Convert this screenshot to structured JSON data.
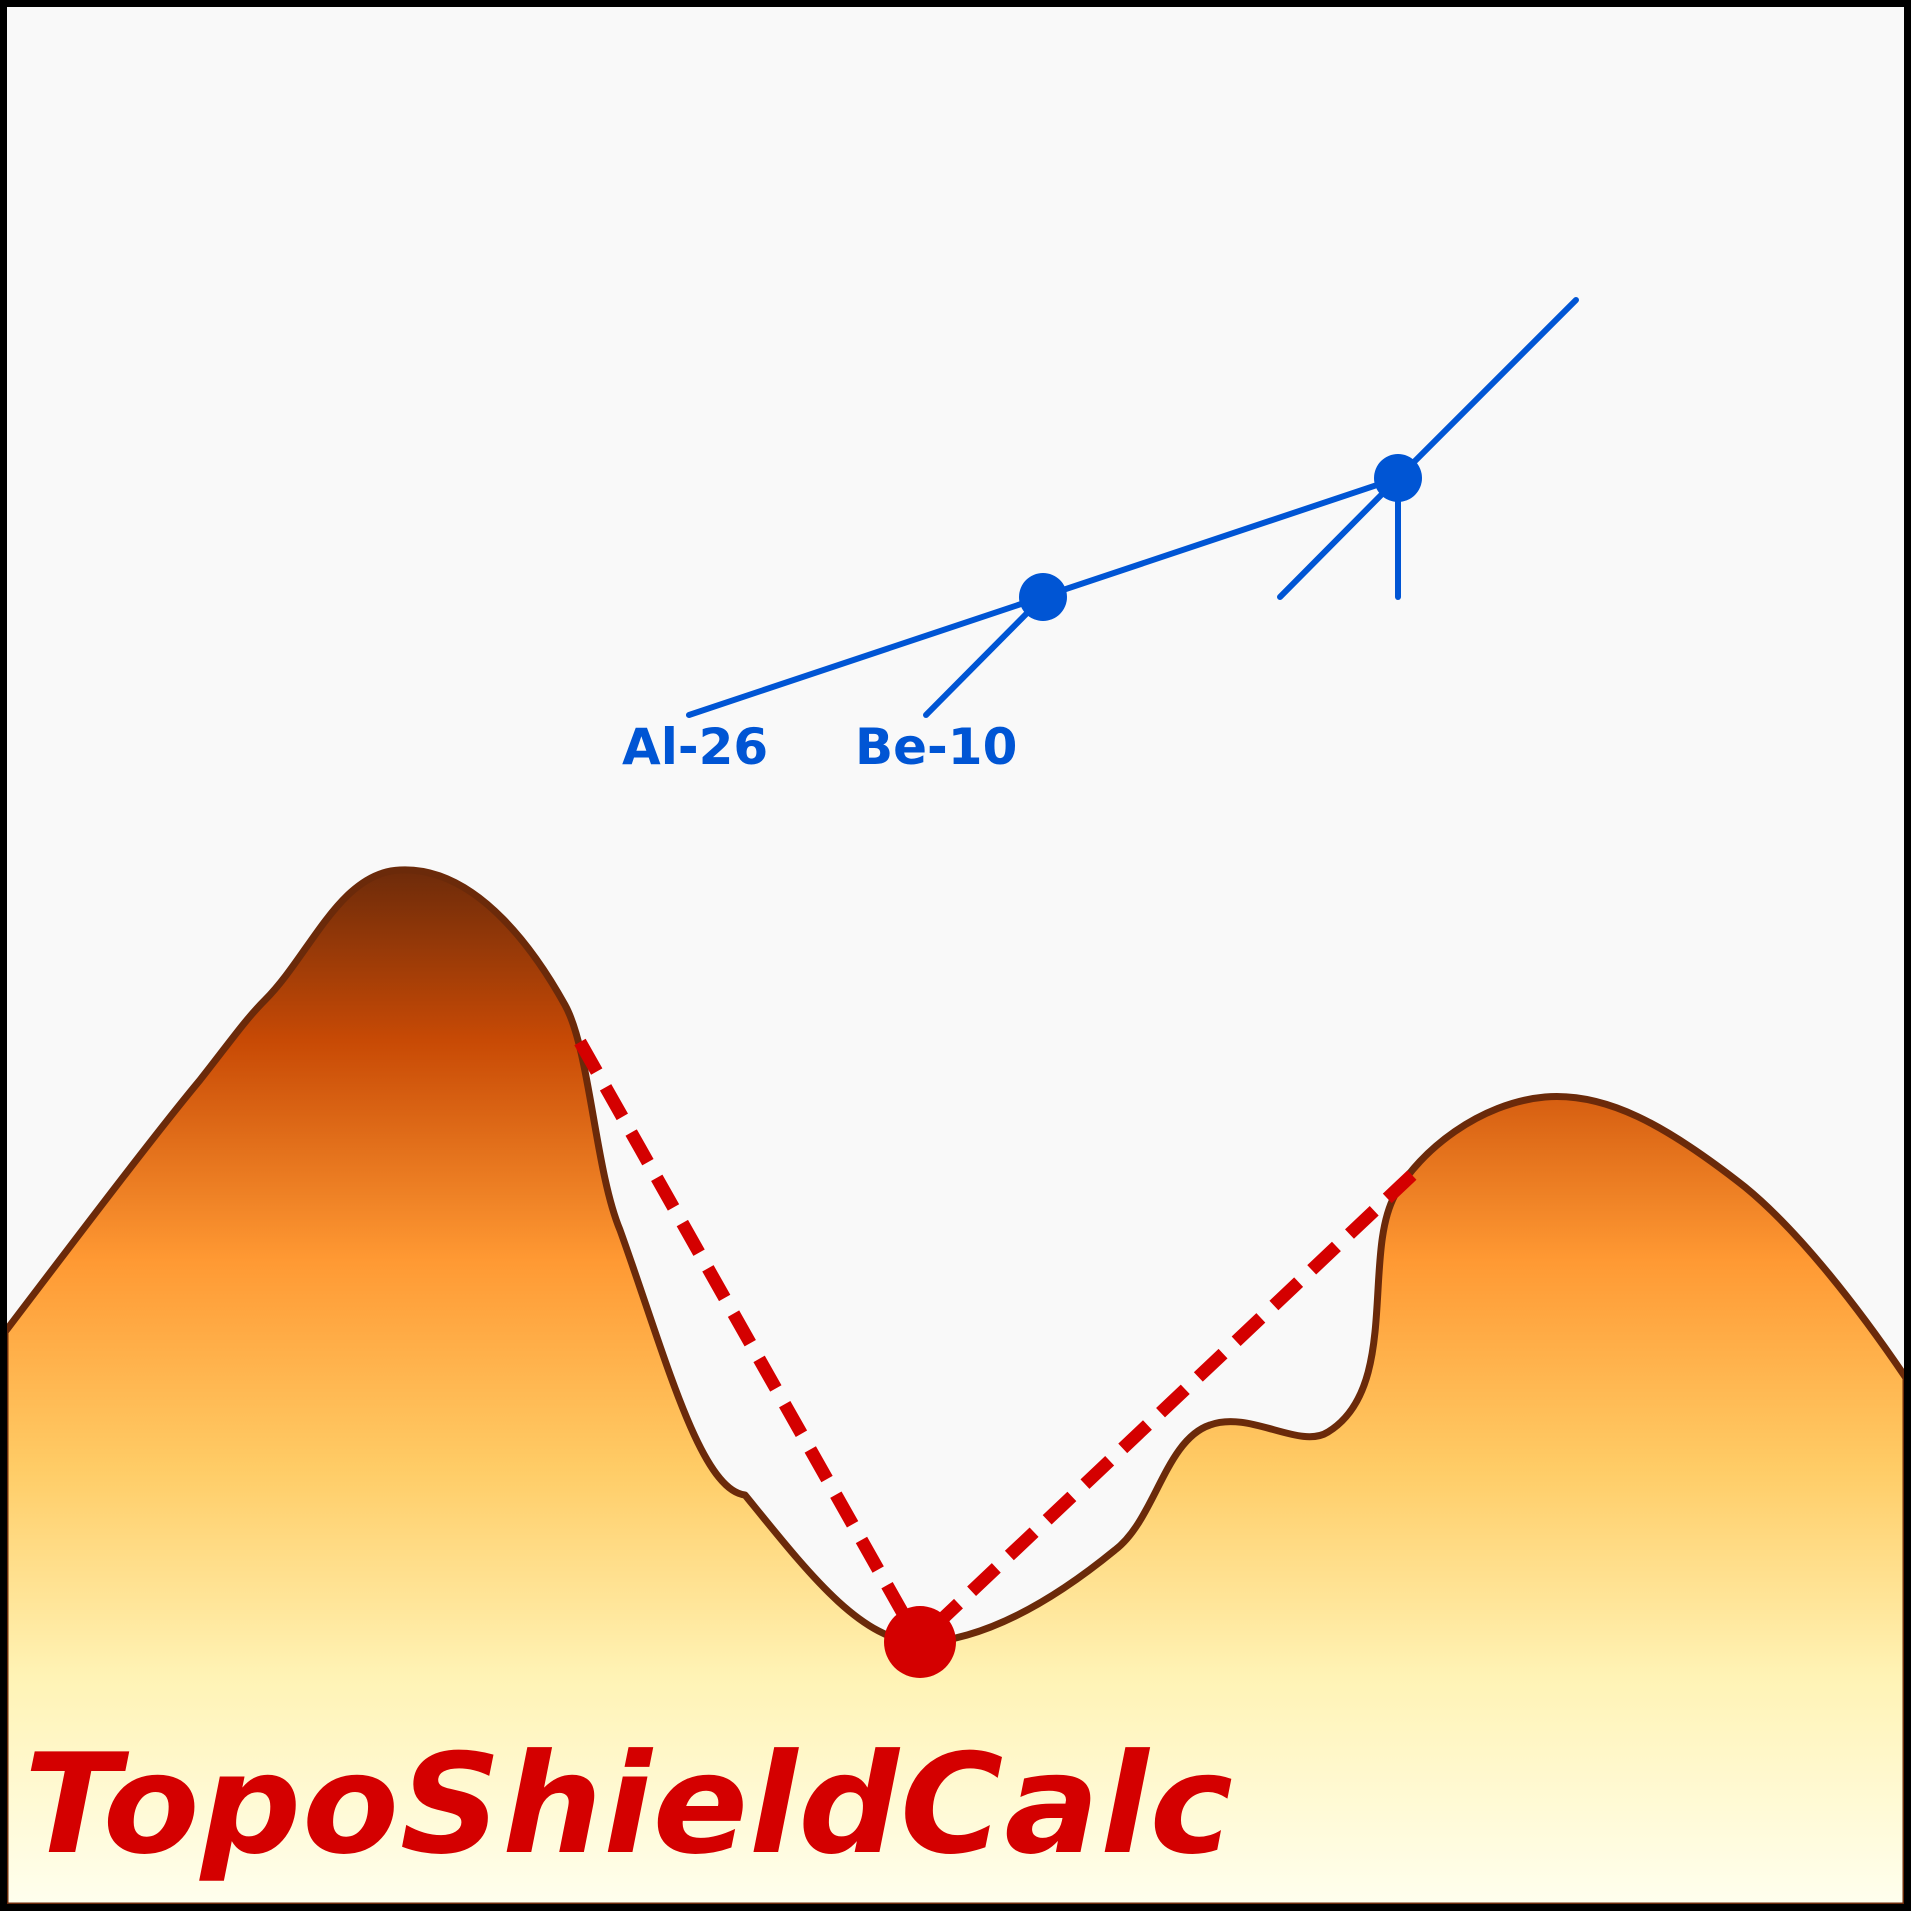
{
  "logo": {
    "title": "TopoShieldCalc",
    "lettering_color": "#D40000"
  },
  "isotopes": {
    "al26": "Al-26",
    "be10": "Be-10",
    "color": "#0055D4"
  },
  "colors": {
    "frame": "#000000",
    "terrain_outline": "#6B2A0A",
    "terrain_top": "#6B2A0A",
    "terrain_mid": "#FF9933",
    "terrain_bottom": "#FFFFEE",
    "shielding_lines": "#D40000",
    "sky": "#F9F9F9"
  },
  "icons": {
    "sample": "sample-point-icon",
    "isotope_tree": "isotope-evolution-diagram-icon"
  }
}
